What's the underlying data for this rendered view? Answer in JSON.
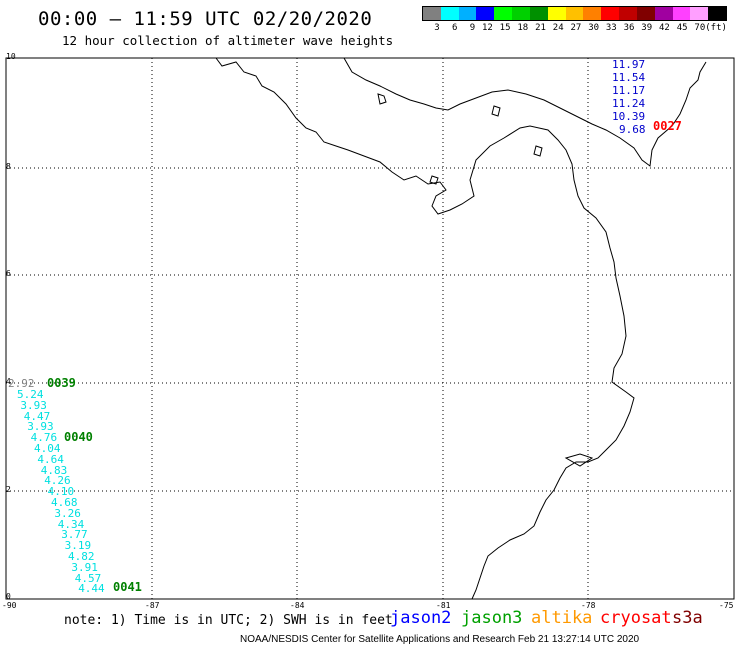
{
  "header": {
    "title": "00:00 – 11:59 UTC 02/20/2020",
    "subtitle": "12 hour collection of altimeter wave heights"
  },
  "legend": {
    "colors": [
      "#808080",
      "#00ffff",
      "#00b0ff",
      "#0000ff",
      "#00ff00",
      "#00d000",
      "#009000",
      "#ffff00",
      "#ffc000",
      "#ff8000",
      "#ff0000",
      "#c00000",
      "#800000",
      "#a000a0",
      "#ff40ff",
      "#ff9fff",
      "#000000"
    ],
    "labels": [
      "3",
      "6",
      "9",
      "12",
      "15",
      "18",
      "21",
      "24",
      "27",
      "30",
      "33",
      "36",
      "39",
      "42",
      "45",
      "70",
      "(ft)"
    ]
  },
  "axes": {
    "lat_labels": [
      "10",
      "8",
      "6",
      "4",
      "2",
      "0"
    ],
    "lon_labels": [
      "-90",
      "-87",
      "-84",
      "-81",
      "-78",
      "-75"
    ]
  },
  "passes": {
    "p0027": {
      "label": "0027",
      "color": "#ff0000",
      "swh": [
        "11.97",
        "11.54",
        "11.17",
        "11.24",
        "10.39",
        "9.68"
      ],
      "swh_color": "#0000cc"
    },
    "p0039": {
      "label": "0039",
      "color": "#008000",
      "first_value": "2.92"
    },
    "p0040": {
      "label": "0040",
      "color": "#008000"
    },
    "p0041": {
      "label": "0041",
      "color": "#008000"
    },
    "west_swh": [
      "5.24",
      "3.93",
      "4.47",
      "3.93",
      "4.76",
      "4.04",
      "4.64",
      "4.83",
      "4.26",
      "4.10",
      "4.68",
      "3.26",
      "4.34",
      "3.77",
      "3.19",
      "4.82",
      "3.91",
      "4.57",
      "4.44"
    ],
    "west_color": "#00e0e0"
  },
  "note": "note: 1) Time is in UTC; 2) SWH is in feet",
  "satellites": [
    {
      "name": "jason2",
      "color": "#0000ff"
    },
    {
      "name": "jason3",
      "color": "#00a000"
    },
    {
      "name": "altika",
      "color": "#ff9900"
    },
    {
      "name": "cryosat",
      "color": "#ff0000"
    },
    {
      "name": "s3a",
      "color": "#800000"
    }
  ],
  "footer": "NOAA/NESDIS Center for Satellite Applications and Research   Feb 21 13:27:14 UTC 2020"
}
